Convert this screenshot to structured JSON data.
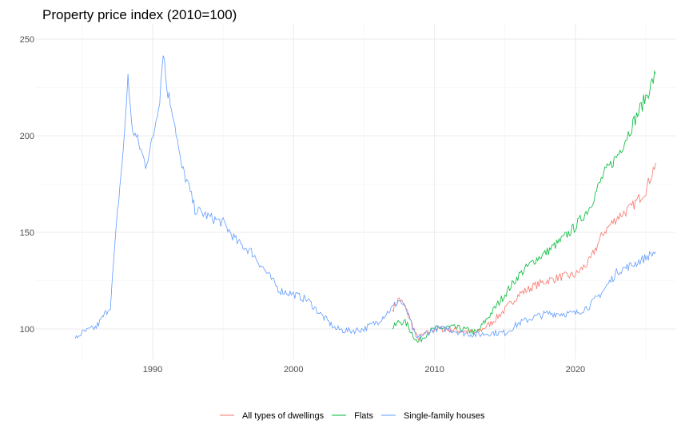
{
  "chart_data": {
    "type": "line",
    "title": "Property price index (2010=100)",
    "xlabel": "",
    "ylabel": "",
    "xlim": [
      1983.2,
      2026.7
    ],
    "ylim": [
      88,
      257
    ],
    "x_ticks": [
      1990,
      2000,
      2010,
      2020
    ],
    "y_ticks": [
      100,
      150,
      200,
      250
    ],
    "legend_position": "bottom",
    "grid": true,
    "series": [
      {
        "name": "All types of dwellings",
        "color": "#F8766D",
        "x": [
          2007,
          2007.5,
          2008,
          2008.8,
          2009.5,
          2010,
          2011,
          2012,
          2013,
          2014,
          2015,
          2016,
          2017,
          2018,
          2019,
          2020,
          2021,
          2022,
          2023,
          2024,
          2025,
          2025.7
        ],
        "y": [
          110,
          116,
          110,
          95,
          98,
          100,
          100,
          99,
          98,
          103,
          110,
          118,
          122,
          125,
          127,
          128,
          135,
          150,
          158,
          163,
          172,
          186
        ]
      },
      {
        "name": "Flats",
        "color": "#00BA38",
        "x": [
          2007,
          2007.5,
          2008,
          2008.8,
          2009.5,
          2010,
          2011,
          2012,
          2013,
          2014,
          2015,
          2016,
          2017,
          2018,
          2019,
          2020,
          2021,
          2022,
          2023,
          2024,
          2025,
          2025.7
        ],
        "y": [
          100,
          104,
          103,
          93,
          98,
          100,
          101,
          100,
          98,
          108,
          118,
          128,
          135,
          140,
          146,
          153,
          163,
          180,
          190,
          205,
          220,
          232
        ]
      },
      {
        "name": "Single-family houses",
        "color": "#619CFF",
        "x": [
          1984.5,
          1985,
          1986,
          1987,
          1987.5,
          1988,
          1988.25,
          1988.5,
          1989,
          1989.5,
          1990,
          1990.5,
          1990.75,
          1991,
          1991.5,
          1992,
          1992.5,
          1993,
          1994,
          1995,
          1996,
          1997,
          1998,
          1999,
          2000,
          2001,
          2002,
          2003,
          2004,
          2005,
          2006,
          2007,
          2007.5,
          2008,
          2008.7,
          2009.5,
          2010,
          2011,
          2012,
          2013,
          2014,
          2015,
          2016,
          2017,
          2018,
          2019,
          2020,
          2021,
          2022,
          2023,
          2024,
          2025,
          2025.7
        ],
        "y": [
          95,
          98,
          101,
          112,
          160,
          200,
          232,
          205,
          196,
          185,
          198,
          220,
          245,
          225,
          210,
          185,
          175,
          162,
          158,
          155,
          145,
          140,
          130,
          120,
          118,
          115,
          107,
          100,
          99,
          100,
          104,
          111,
          115,
          110,
          95,
          98,
          100,
          100,
          98,
          97,
          98,
          98,
          103,
          106,
          108,
          108,
          108,
          112,
          120,
          130,
          133,
          137,
          140
        ]
      }
    ]
  }
}
